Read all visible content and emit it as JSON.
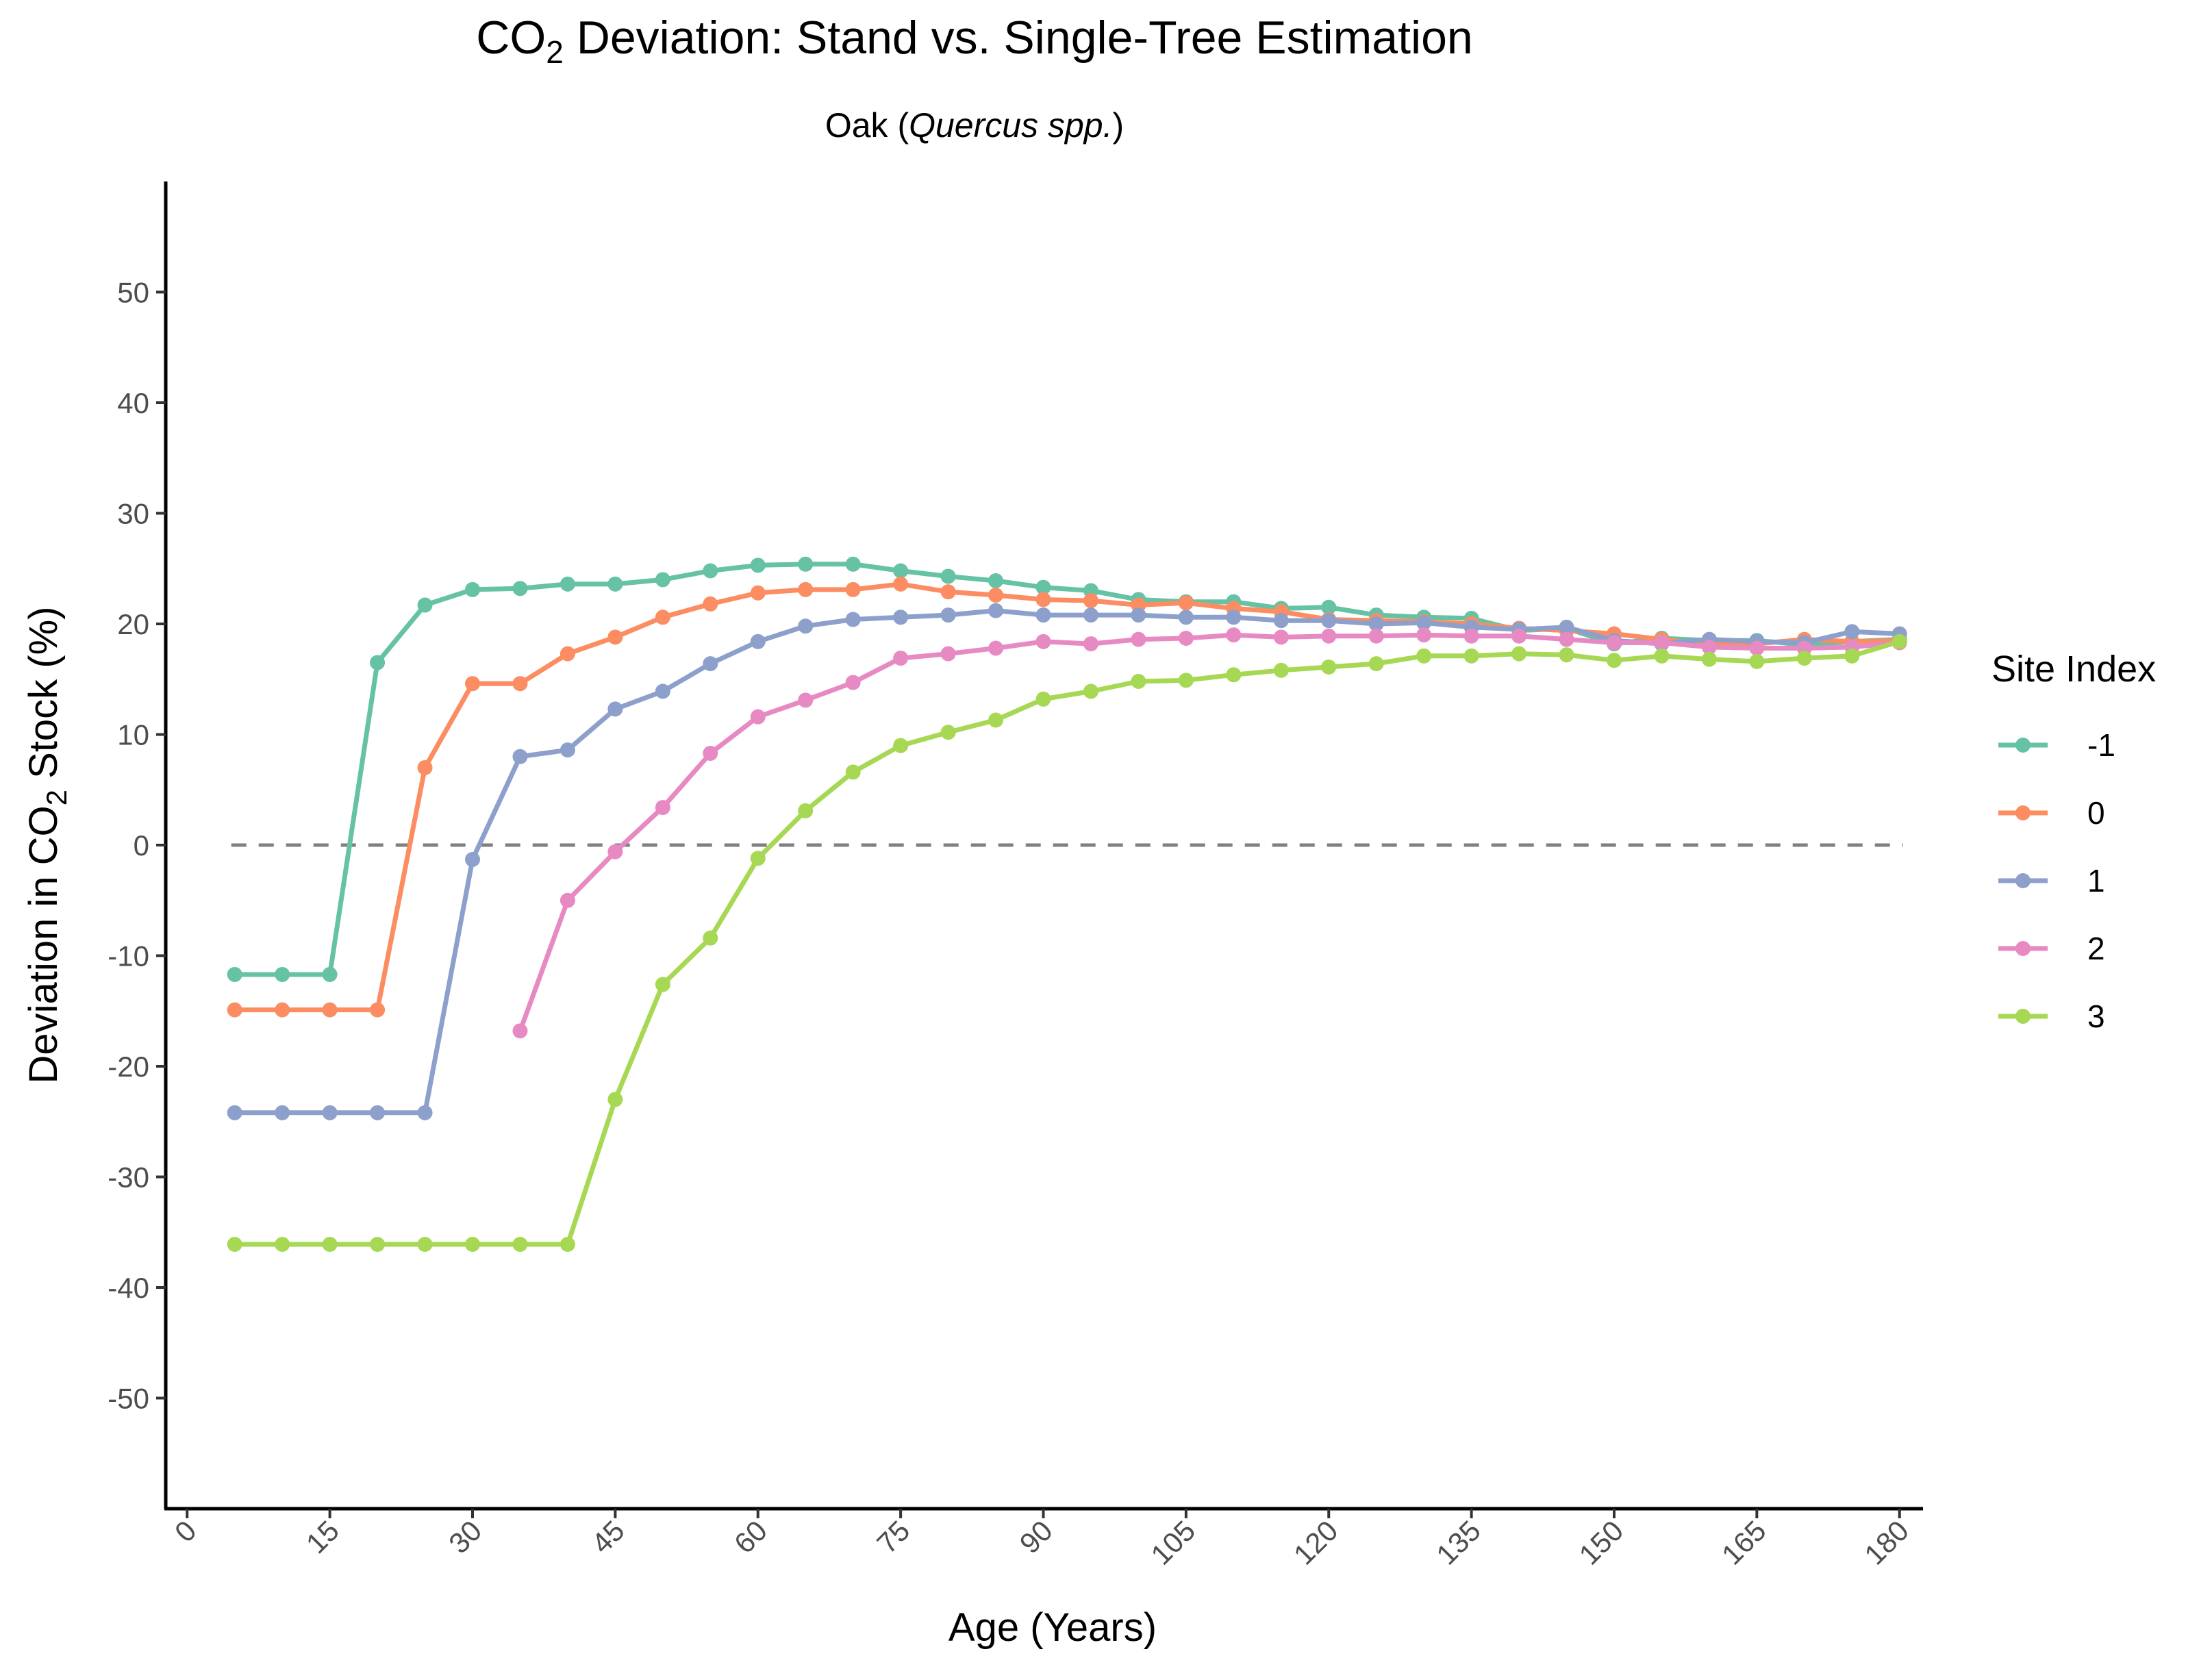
{
  "chart_data": {
    "type": "line",
    "title": {
      "main": "CO",
      "sub": "2",
      "rest": " Deviation: Stand vs. Single-Tree Estimation"
    },
    "subtitle": {
      "prefix": "Oak (",
      "italic": "Quercus spp.",
      "suffix": ")"
    },
    "xlabel": "Age (Years)",
    "ylabel": {
      "prefix": "Deviation in CO",
      "sub": "2",
      "suffix": " Stock (%)"
    },
    "xlim": [
      -2.25,
      182.25
    ],
    "ylim": [
      -60,
      60
    ],
    "x_ticks": [
      0,
      15,
      30,
      45,
      60,
      75,
      90,
      105,
      120,
      135,
      150,
      165,
      180
    ],
    "y_ticks": [
      -50,
      -40,
      -30,
      -20,
      -10,
      0,
      10,
      20,
      30,
      40,
      50
    ],
    "reference_line": {
      "y": 0,
      "style": "dashed",
      "color": "#808080"
    },
    "legend": {
      "title": "Site Index",
      "position": "right"
    },
    "series": [
      {
        "name": "-1",
        "color": "#66c2a5",
        "x": [
          5,
          10,
          15,
          20,
          25,
          30,
          35,
          40,
          45,
          50,
          55,
          60,
          65,
          70,
          75,
          80,
          85,
          90,
          95,
          100,
          105,
          110,
          115,
          120,
          125,
          130,
          135,
          140,
          145,
          150,
          155,
          160,
          165,
          170,
          175,
          180
        ],
        "y": [
          -11.7,
          -11.7,
          -11.7,
          16.5,
          21.7,
          23.1,
          23.2,
          23.6,
          23.6,
          24.0,
          24.8,
          25.3,
          25.4,
          25.4,
          24.8,
          24.3,
          23.9,
          23.3,
          23.0,
          22.2,
          22.0,
          22.0,
          21.4,
          21.5,
          20.8,
          20.6,
          20.5,
          19.4,
          19.6,
          18.2,
          18.7,
          18.5,
          18.5,
          18.1,
          18.4,
          18.6
        ]
      },
      {
        "name": "0",
        "color": "#fc8d62",
        "x": [
          5,
          10,
          15,
          20,
          25,
          30,
          35,
          40,
          45,
          50,
          55,
          60,
          65,
          70,
          75,
          80,
          85,
          90,
          95,
          100,
          105,
          110,
          115,
          120,
          125,
          130,
          135,
          140,
          145,
          150,
          155,
          160,
          165,
          170,
          175,
          180
        ],
        "y": [
          -14.9,
          -14.9,
          -14.9,
          -14.9,
          7.0,
          14.6,
          14.6,
          17.3,
          18.8,
          20.6,
          21.8,
          22.8,
          23.1,
          23.1,
          23.6,
          22.9,
          22.6,
          22.2,
          22.1,
          21.7,
          21.9,
          21.4,
          21.1,
          20.4,
          20.3,
          20.2,
          20.0,
          19.6,
          19.4,
          19.1,
          18.6,
          18.1,
          18.2,
          18.6,
          18.4,
          18.5
        ]
      },
      {
        "name": "1",
        "color": "#8da0cb",
        "x": [
          5,
          10,
          15,
          20,
          25,
          30,
          35,
          40,
          45,
          50,
          55,
          60,
          65,
          70,
          75,
          80,
          85,
          90,
          95,
          100,
          105,
          110,
          115,
          120,
          125,
          130,
          135,
          140,
          145,
          150,
          155,
          160,
          165,
          170,
          175,
          180
        ],
        "y": [
          -24.2,
          -24.2,
          -24.2,
          -24.2,
          -24.2,
          -1.3,
          8.0,
          8.6,
          12.3,
          13.9,
          16.4,
          18.4,
          19.8,
          20.4,
          20.6,
          20.8,
          21.2,
          20.8,
          20.8,
          20.8,
          20.6,
          20.6,
          20.3,
          20.3,
          20.0,
          20.1,
          19.7,
          19.5,
          19.7,
          18.5,
          18.2,
          18.6,
          18.4,
          18.3,
          19.3,
          19.1
        ]
      },
      {
        "name": "2",
        "color": "#e78ac3",
        "x": [
          35,
          40,
          45,
          50,
          55,
          60,
          65,
          70,
          75,
          80,
          85,
          90,
          95,
          100,
          105,
          110,
          115,
          120,
          125,
          130,
          135,
          140,
          145,
          150,
          155,
          160,
          165,
          170,
          175,
          180
        ],
        "y": [
          -16.8,
          -5.0,
          -0.6,
          3.4,
          8.3,
          11.6,
          13.1,
          14.7,
          16.9,
          17.3,
          17.8,
          18.4,
          18.2,
          18.6,
          18.7,
          19.0,
          18.8,
          18.9,
          18.9,
          19.0,
          18.9,
          18.9,
          18.6,
          18.3,
          18.3,
          17.9,
          17.8,
          17.8,
          17.9,
          18.3
        ]
      },
      {
        "name": "3",
        "color": "#a6d854",
        "x": [
          5,
          10,
          15,
          20,
          25,
          30,
          35,
          40,
          45,
          50,
          55,
          60,
          65,
          70,
          75,
          80,
          85,
          90,
          95,
          100,
          105,
          110,
          115,
          120,
          125,
          130,
          135,
          140,
          145,
          150,
          155,
          160,
          165,
          170,
          175,
          180
        ],
        "y": [
          -36.1,
          -36.1,
          -36.1,
          -36.1,
          -36.1,
          -36.1,
          -36.1,
          -36.1,
          -23.0,
          -12.6,
          -8.4,
          -1.2,
          3.1,
          6.6,
          9.0,
          10.2,
          11.3,
          13.2,
          13.9,
          14.8,
          14.9,
          15.4,
          15.8,
          16.1,
          16.4,
          17.1,
          17.1,
          17.3,
          17.2,
          16.7,
          17.1,
          16.8,
          16.6,
          16.9,
          17.1,
          18.4
        ]
      }
    ]
  }
}
